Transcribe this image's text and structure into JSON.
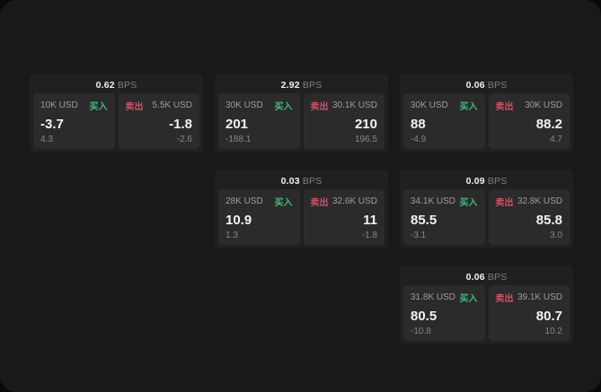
{
  "labels": {
    "buy": "买入",
    "sell": "卖出",
    "bps_unit": "BPS"
  },
  "colors": {
    "buy": "#3fbe7c",
    "sell": "#d24f64",
    "app_background": "#191919",
    "card_background": "#202020",
    "panel_background": "#2b2b2c"
  },
  "cards": [
    {
      "col": 1,
      "row": 1,
      "bps": "0.62",
      "buy": {
        "amount": "10K USD",
        "price": "-3.7",
        "sub": "4.3"
      },
      "sell": {
        "amount": "5.5K USD",
        "price": "-1.8",
        "sub": "-2.6"
      }
    },
    {
      "col": 2,
      "row": 1,
      "bps": "2.92",
      "buy": {
        "amount": "30K USD",
        "price": "201",
        "sub": "-188.1"
      },
      "sell": {
        "amount": "30.1K USD",
        "price": "210",
        "sub": "196.5"
      }
    },
    {
      "col": 3,
      "row": 1,
      "bps": "0.06",
      "buy": {
        "amount": "30K USD",
        "price": "88",
        "sub": "-4.9"
      },
      "sell": {
        "amount": "30K USD",
        "price": "88.2",
        "sub": "4.7"
      }
    },
    {
      "col": 2,
      "row": 2,
      "bps": "0.03",
      "buy": {
        "amount": "28K USD",
        "price": "10.9",
        "sub": "1.3"
      },
      "sell": {
        "amount": "32.6K USD",
        "price": "11",
        "sub": "-1.8"
      }
    },
    {
      "col": 3,
      "row": 2,
      "bps": "0.09",
      "buy": {
        "amount": "34.1K USD",
        "price": "85.5",
        "sub": "-3.1"
      },
      "sell": {
        "amount": "32.8K USD",
        "price": "85.8",
        "sub": "3.0"
      }
    },
    {
      "col": 3,
      "row": 3,
      "bps": "0.06",
      "buy": {
        "amount": "31.8K USD",
        "price": "80.5",
        "sub": "-10.8"
      },
      "sell": {
        "amount": "39.1K USD",
        "price": "80.7",
        "sub": "10.2"
      }
    }
  ]
}
